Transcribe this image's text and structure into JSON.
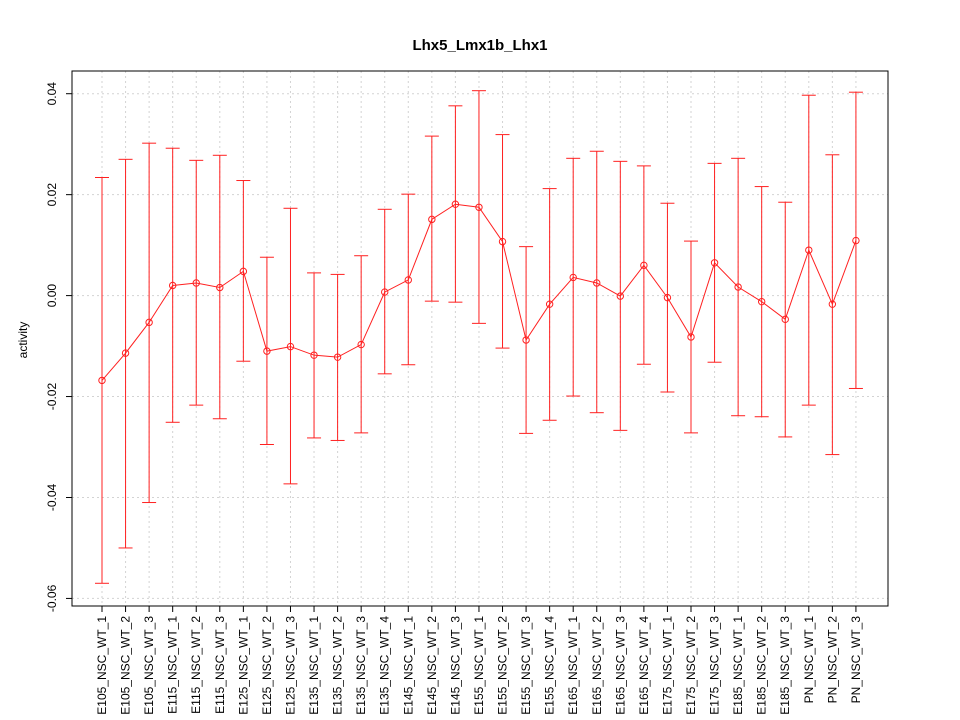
{
  "chart_data": {
    "type": "line",
    "title": "Lhx5_Lmx1b_Lhx1",
    "xlabel": "",
    "ylabel": "activity",
    "ylim": [
      -0.0615,
      0.0445
    ],
    "y_ticks": [
      -0.06,
      -0.04,
      -0.02,
      0.0,
      0.02,
      0.04
    ],
    "y_tick_labels": [
      "-0.06",
      "-0.04",
      "-0.02",
      "0.00",
      "0.02",
      "0.04"
    ],
    "grid": true,
    "color": "#ff2020",
    "categories": [
      "E105_NSC_WT_1",
      "E105_NSC_WT_2",
      "E105_NSC_WT_3",
      "E115_NSC_WT_1",
      "E115_NSC_WT_2",
      "E115_NSC_WT_3",
      "E125_NSC_WT_1",
      "E125_NSC_WT_2",
      "E125_NSC_WT_3",
      "E135_NSC_WT_1",
      "E135_NSC_WT_2",
      "E135_NSC_WT_3",
      "E135_NSC_WT_4",
      "E145_NSC_WT_1",
      "E145_NSC_WT_2",
      "E145_NSC_WT_3",
      "E155_NSC_WT_1",
      "E155_NSC_WT_2",
      "E155_NSC_WT_3",
      "E155_NSC_WT_4",
      "E165_NSC_WT_1",
      "E165_NSC_WT_2",
      "E165_NSC_WT_3",
      "E165_NSC_WT_4",
      "E175_NSC_WT_1",
      "E175_NSC_WT_2",
      "E175_NSC_WT_3",
      "E185_NSC_WT_1",
      "E185_NSC_WT_2",
      "E185_NSC_WT_3",
      "PN_NSC_WT_1",
      "PN_NSC_WT_2",
      "PN_NSC_WT_3"
    ],
    "values": [
      -0.0168,
      -0.0114,
      -0.0053,
      0.002,
      0.0025,
      0.0016,
      0.0048,
      -0.011,
      -0.0101,
      -0.0118,
      -0.0122,
      -0.0097,
      0.0007,
      0.0031,
      0.0151,
      0.0181,
      0.0175,
      0.0107,
      -0.0088,
      -0.0017,
      0.0036,
      0.0025,
      -0.0001,
      0.006,
      -0.0004,
      -0.0082,
      0.0065,
      0.0017,
      -0.0012,
      -0.0047,
      0.009,
      -0.0017,
      0.0109
    ],
    "upper": [
      0.0234,
      0.027,
      0.0302,
      0.0292,
      0.0268,
      0.0278,
      0.0228,
      0.0076,
      0.0173,
      0.0045,
      0.0042,
      0.0079,
      0.0171,
      0.0201,
      0.0316,
      0.0376,
      0.0406,
      0.0319,
      0.0097,
      0.0212,
      0.0272,
      0.0286,
      0.0266,
      0.0257,
      0.0183,
      0.0108,
      0.0262,
      0.0272,
      0.0216,
      0.0185,
      0.0397,
      0.0279,
      0.0403
    ],
    "lower": [
      -0.057,
      -0.05,
      -0.041,
      -0.0251,
      -0.0217,
      -0.0244,
      -0.013,
      -0.0295,
      -0.0373,
      -0.0282,
      -0.0287,
      -0.0272,
      -0.0155,
      -0.0137,
      -0.0011,
      -0.0013,
      -0.0055,
      -0.0104,
      -0.0273,
      -0.0247,
      -0.0199,
      -0.0232,
      -0.0267,
      -0.0136,
      -0.0191,
      -0.0272,
      -0.0132,
      -0.0238,
      -0.024,
      -0.028,
      -0.0217,
      -0.0315,
      -0.0184
    ]
  }
}
